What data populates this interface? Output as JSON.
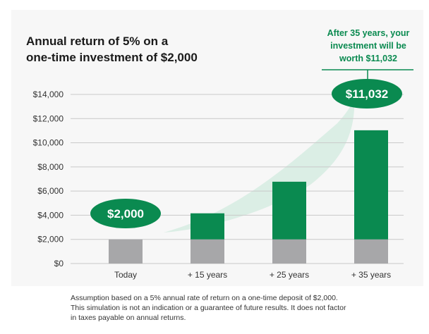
{
  "title_lines": [
    "Annual return of 5% on a",
    "one-time investment of $2,000"
  ],
  "callout_lines": [
    "After 35 years, your",
    "investment will be",
    "worth $11,032"
  ],
  "footnote_lines": [
    "Assumption based on a 5% annual rate of return on a one-time deposit of $2,000.",
    "This simulation is not an indication or a guarantee of future results. It does not factor",
    "in taxes payable on annual returns."
  ],
  "colors": {
    "growth": "#0a8a50",
    "principal": "#a7a7a9",
    "callout_text": "#0a8a50",
    "trend_band": "#d7ece2"
  },
  "chart_data": {
    "type": "bar",
    "stacked": true,
    "categories": [
      "Today",
      "+ 15 years",
      "+ 25 years",
      "+ 35 years"
    ],
    "series": [
      {
        "values": [
          2000,
          2000,
          2000,
          2000
        ],
        "color": "#a7a7a9"
      },
      {
        "values": [
          0,
          2158,
          4773,
          9032
        ],
        "color": "#0a8a50"
      }
    ],
    "totals": [
      2000,
      4158,
      6773,
      11032
    ],
    "ylim": [
      0,
      14000
    ],
    "yticks": [
      0,
      2000,
      4000,
      6000,
      8000,
      10000,
      12000,
      14000
    ],
    "ytick_labels": [
      "$0",
      "$2,000",
      "$4,000",
      "$6,000",
      "$8,000",
      "$10,000",
      "$12,000",
      "$14,000"
    ],
    "bubbles": [
      {
        "category": "Today",
        "label": "$2,000"
      },
      {
        "category": "+ 35 years",
        "label": "$11,032"
      }
    ],
    "grid": true,
    "trend_band": true
  }
}
